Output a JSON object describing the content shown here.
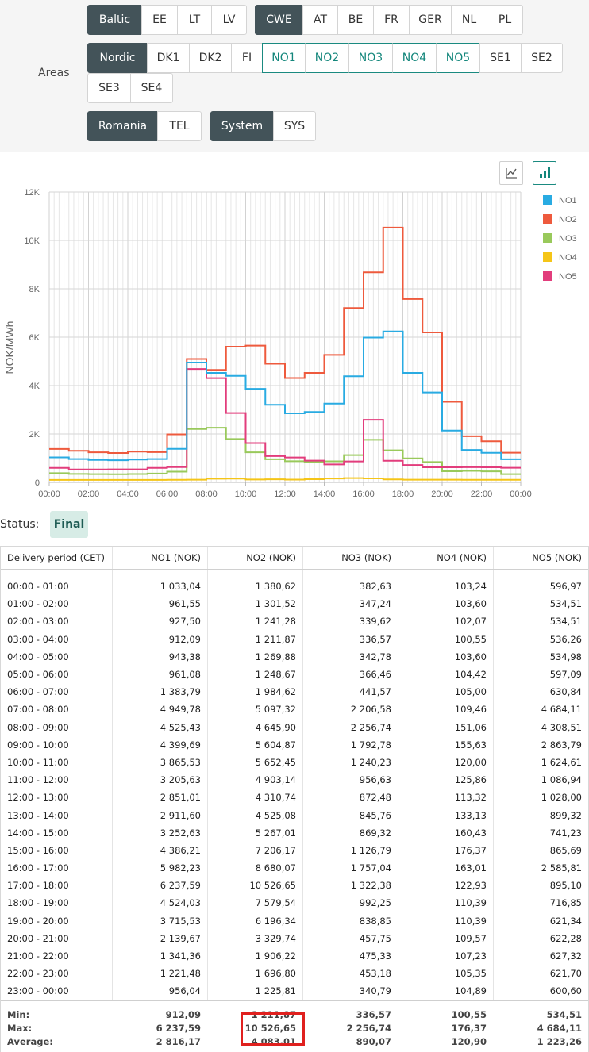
{
  "areas": {
    "label": "Areas",
    "groups": [
      {
        "items": [
          "Baltic",
          "EE",
          "LT",
          "LV"
        ]
      },
      {
        "items": [
          "CWE",
          "AT",
          "BE",
          "FR",
          "GER",
          "NL",
          "PL"
        ]
      },
      {
        "items": [
          "Nordic",
          "DK1",
          "DK2",
          "FI",
          "NO1",
          "NO2",
          "NO3",
          "NO4",
          "NO5",
          "SE1",
          "SE2"
        ]
      },
      {
        "items": [
          "SE3",
          "SE4"
        ]
      },
      {
        "items": [
          "Romania",
          "TEL"
        ]
      },
      {
        "items": [
          "System",
          "SYS"
        ]
      }
    ]
  },
  "chart_controls": {
    "line_icon": "line-chart-icon",
    "bar_icon": "bar-chart-icon"
  },
  "chart_data": {
    "type": "line",
    "step": true,
    "ylabel": "NOK/MWh",
    "ylim": [
      0,
      12000
    ],
    "y_ticks": [
      "0",
      "2K",
      "4K",
      "6K",
      "8K",
      "10K",
      "12K"
    ],
    "x_ticks": [
      "00:00",
      "02:00",
      "04:00",
      "06:00",
      "08:00",
      "10:00",
      "12:00",
      "14:00",
      "16:00",
      "18:00",
      "20:00",
      "22:00",
      "00:00"
    ],
    "grid": true,
    "legend": "right",
    "series": [
      {
        "name": "NO1",
        "color": "#29abe2",
        "values": [
          1033.04,
          961.55,
          927.5,
          912.09,
          943.38,
          961.08,
          1383.79,
          4949.78,
          4525.43,
          4399.69,
          3865.53,
          3205.63,
          2851.01,
          2911.6,
          3252.63,
          4386.21,
          5982.23,
          6237.59,
          4524.03,
          3715.53,
          2139.67,
          1341.36,
          1221.48,
          956.04
        ]
      },
      {
        "name": "NO2",
        "color": "#ee5a3d",
        "values": [
          1380.62,
          1301.52,
          1241.28,
          1211.87,
          1269.88,
          1248.67,
          1984.62,
          5097.32,
          4645.9,
          5604.87,
          5652.45,
          4903.14,
          4310.74,
          4525.08,
          5267.01,
          7206.17,
          8680.07,
          10526.65,
          7579.54,
          6196.34,
          3329.74,
          1906.22,
          1696.8,
          1225.81
        ]
      },
      {
        "name": "NO3",
        "color": "#99c95b",
        "values": [
          382.63,
          347.24,
          339.62,
          336.57,
          342.78,
          366.46,
          441.57,
          2206.58,
          2256.74,
          1792.78,
          1240.23,
          956.63,
          872.48,
          845.76,
          869.32,
          1126.79,
          1757.04,
          1322.38,
          992.25,
          838.85,
          457.75,
          475.33,
          453.18,
          340.79
        ]
      },
      {
        "name": "NO4",
        "color": "#f5c518",
        "values": [
          103.24,
          103.6,
          102.07,
          100.55,
          103.6,
          104.42,
          105.0,
          109.46,
          151.06,
          155.63,
          120.0,
          125.86,
          113.32,
          133.13,
          160.43,
          176.37,
          163.01,
          122.93,
          110.39,
          110.39,
          109.57,
          107.23,
          105.35,
          104.89
        ]
      },
      {
        "name": "NO5",
        "color": "#e23d7c",
        "values": [
          596.97,
          534.51,
          534.51,
          536.26,
          534.98,
          597.09,
          630.84,
          4684.11,
          4308.51,
          2863.79,
          1624.61,
          1086.94,
          1028.0,
          899.32,
          741.23,
          865.69,
          2585.81,
          895.1,
          716.85,
          621.34,
          622.28,
          627.32,
          621.7,
          600.6
        ]
      }
    ]
  },
  "status": {
    "label": "Status:",
    "value": "Final"
  },
  "table": {
    "headers": [
      "Delivery period (CET)",
      "NO1 (NOK)",
      "NO2 (NOK)",
      "NO3 (NOK)",
      "NO4 (NOK)",
      "NO5 (NOK)"
    ],
    "rows": [
      [
        "00:00 - 01:00",
        "1 033,04",
        "1 380,62",
        "382,63",
        "103,24",
        "596,97"
      ],
      [
        "01:00 - 02:00",
        "961,55",
        "1 301,52",
        "347,24",
        "103,60",
        "534,51"
      ],
      [
        "02:00 - 03:00",
        "927,50",
        "1 241,28",
        "339,62",
        "102,07",
        "534,51"
      ],
      [
        "03:00 - 04:00",
        "912,09",
        "1 211,87",
        "336,57",
        "100,55",
        "536,26"
      ],
      [
        "04:00 - 05:00",
        "943,38",
        "1 269,88",
        "342,78",
        "103,60",
        "534,98"
      ],
      [
        "05:00 - 06:00",
        "961,08",
        "1 248,67",
        "366,46",
        "104,42",
        "597,09"
      ],
      [
        "06:00 - 07:00",
        "1 383,79",
        "1 984,62",
        "441,57",
        "105,00",
        "630,84"
      ],
      [
        "07:00 - 08:00",
        "4 949,78",
        "5 097,32",
        "2 206,58",
        "109,46",
        "4 684,11"
      ],
      [
        "08:00 - 09:00",
        "4 525,43",
        "4 645,90",
        "2 256,74",
        "151,06",
        "4 308,51"
      ],
      [
        "09:00 - 10:00",
        "4 399,69",
        "5 604,87",
        "1 792,78",
        "155,63",
        "2 863,79"
      ],
      [
        "10:00 - 11:00",
        "3 865,53",
        "5 652,45",
        "1 240,23",
        "120,00",
        "1 624,61"
      ],
      [
        "11:00 - 12:00",
        "3 205,63",
        "4 903,14",
        "956,63",
        "125,86",
        "1 086,94"
      ],
      [
        "12:00 - 13:00",
        "2 851,01",
        "4 310,74",
        "872,48",
        "113,32",
        "1 028,00"
      ],
      [
        "13:00 - 14:00",
        "2 911,60",
        "4 525,08",
        "845,76",
        "133,13",
        "899,32"
      ],
      [
        "14:00 - 15:00",
        "3 252,63",
        "5 267,01",
        "869,32",
        "160,43",
        "741,23"
      ],
      [
        "15:00 - 16:00",
        "4 386,21",
        "7 206,17",
        "1 126,79",
        "176,37",
        "865,69"
      ],
      [
        "16:00 - 17:00",
        "5 982,23",
        "8 680,07",
        "1 757,04",
        "163,01",
        "2 585,81"
      ],
      [
        "17:00 - 18:00",
        "6 237,59",
        "10 526,65",
        "1 322,38",
        "122,93",
        "895,10"
      ],
      [
        "18:00 - 19:00",
        "4 524,03",
        "7 579,54",
        "992,25",
        "110,39",
        "716,85"
      ],
      [
        "19:00 - 20:00",
        "3 715,53",
        "6 196,34",
        "838,85",
        "110,39",
        "621,34"
      ],
      [
        "20:00 - 21:00",
        "2 139,67",
        "3 329,74",
        "457,75",
        "109,57",
        "622,28"
      ],
      [
        "21:00 - 22:00",
        "1 341,36",
        "1 906,22",
        "475,33",
        "107,23",
        "627,32"
      ],
      [
        "22:00 - 23:00",
        "1 221,48",
        "1 696,80",
        "453,18",
        "105,35",
        "621,70"
      ],
      [
        "23:00 - 00:00",
        "956,04",
        "1 225,81",
        "340,79",
        "104,89",
        "600,60"
      ]
    ],
    "summary": [
      [
        "Min:",
        "912,09",
        "1 211,87",
        "336,57",
        "100,55",
        "534,51"
      ],
      [
        "Max:",
        "6 237,59",
        "10 526,65",
        "2 256,74",
        "176,37",
        "4 684,11"
      ],
      [
        "Average:",
        "2 816,17",
        "4 083,01",
        "890,07",
        "120,90",
        "1 223,26"
      ]
    ]
  }
}
